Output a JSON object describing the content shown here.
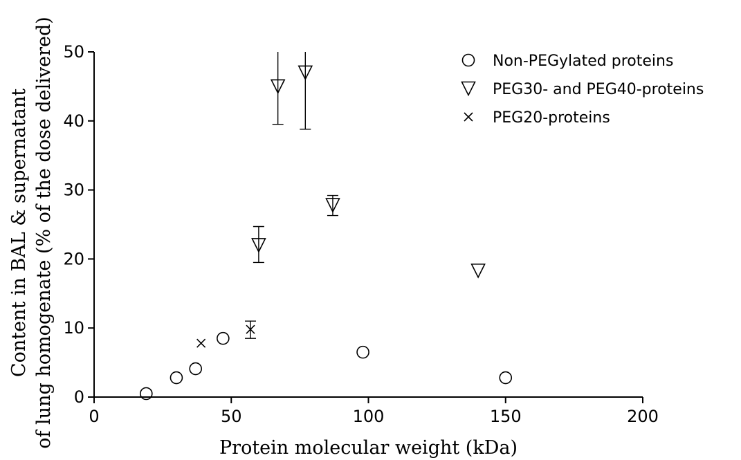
{
  "chart_data": {
    "type": "scatter",
    "title": "",
    "xlabel": "Protein molecular weight (kDa)",
    "ylabel_lines": [
      "Content in BAL & supernatant",
      "of lung homogenate (% of the dose delivered)"
    ],
    "xlim": [
      0,
      200
    ],
    "ylim": [
      0,
      50
    ],
    "xticks": [
      0,
      50,
      100,
      150,
      200
    ],
    "yticks": [
      0,
      10,
      20,
      30,
      40,
      50
    ],
    "grid": false,
    "legend_position": "top-right",
    "series": [
      {
        "name": "Non-PEGylated proteins",
        "marker": "circle",
        "points": [
          {
            "x": 19,
            "y": 0.5
          },
          {
            "x": 30,
            "y": 2.8
          },
          {
            "x": 37,
            "y": 4.1
          },
          {
            "x": 47,
            "y": 8.5
          },
          {
            "x": 98,
            "y": 6.5
          },
          {
            "x": 150,
            "y": 2.8
          }
        ]
      },
      {
        "name": "PEG30- and PEG40-proteins",
        "marker": "triangle-down",
        "points": [
          {
            "x": 60,
            "y": 22.0,
            "err_low": 19.5,
            "err_high": 24.7
          },
          {
            "x": 67,
            "y": 45.0,
            "err_low": 39.5,
            "err_high": 50.0
          },
          {
            "x": 77,
            "y": 47.0,
            "err_low": 38.8,
            "err_high": 50.0
          },
          {
            "x": 87,
            "y": 27.8,
            "err_low": 26.3,
            "err_high": 29.2
          },
          {
            "x": 140,
            "y": 18.3
          }
        ]
      },
      {
        "name": "PEG20-proteins",
        "marker": "x",
        "points": [
          {
            "x": 39,
            "y": 7.8
          },
          {
            "x": 57,
            "y": 9.8,
            "err_low": 8.5,
            "err_high": 11.0
          }
        ]
      }
    ]
  }
}
